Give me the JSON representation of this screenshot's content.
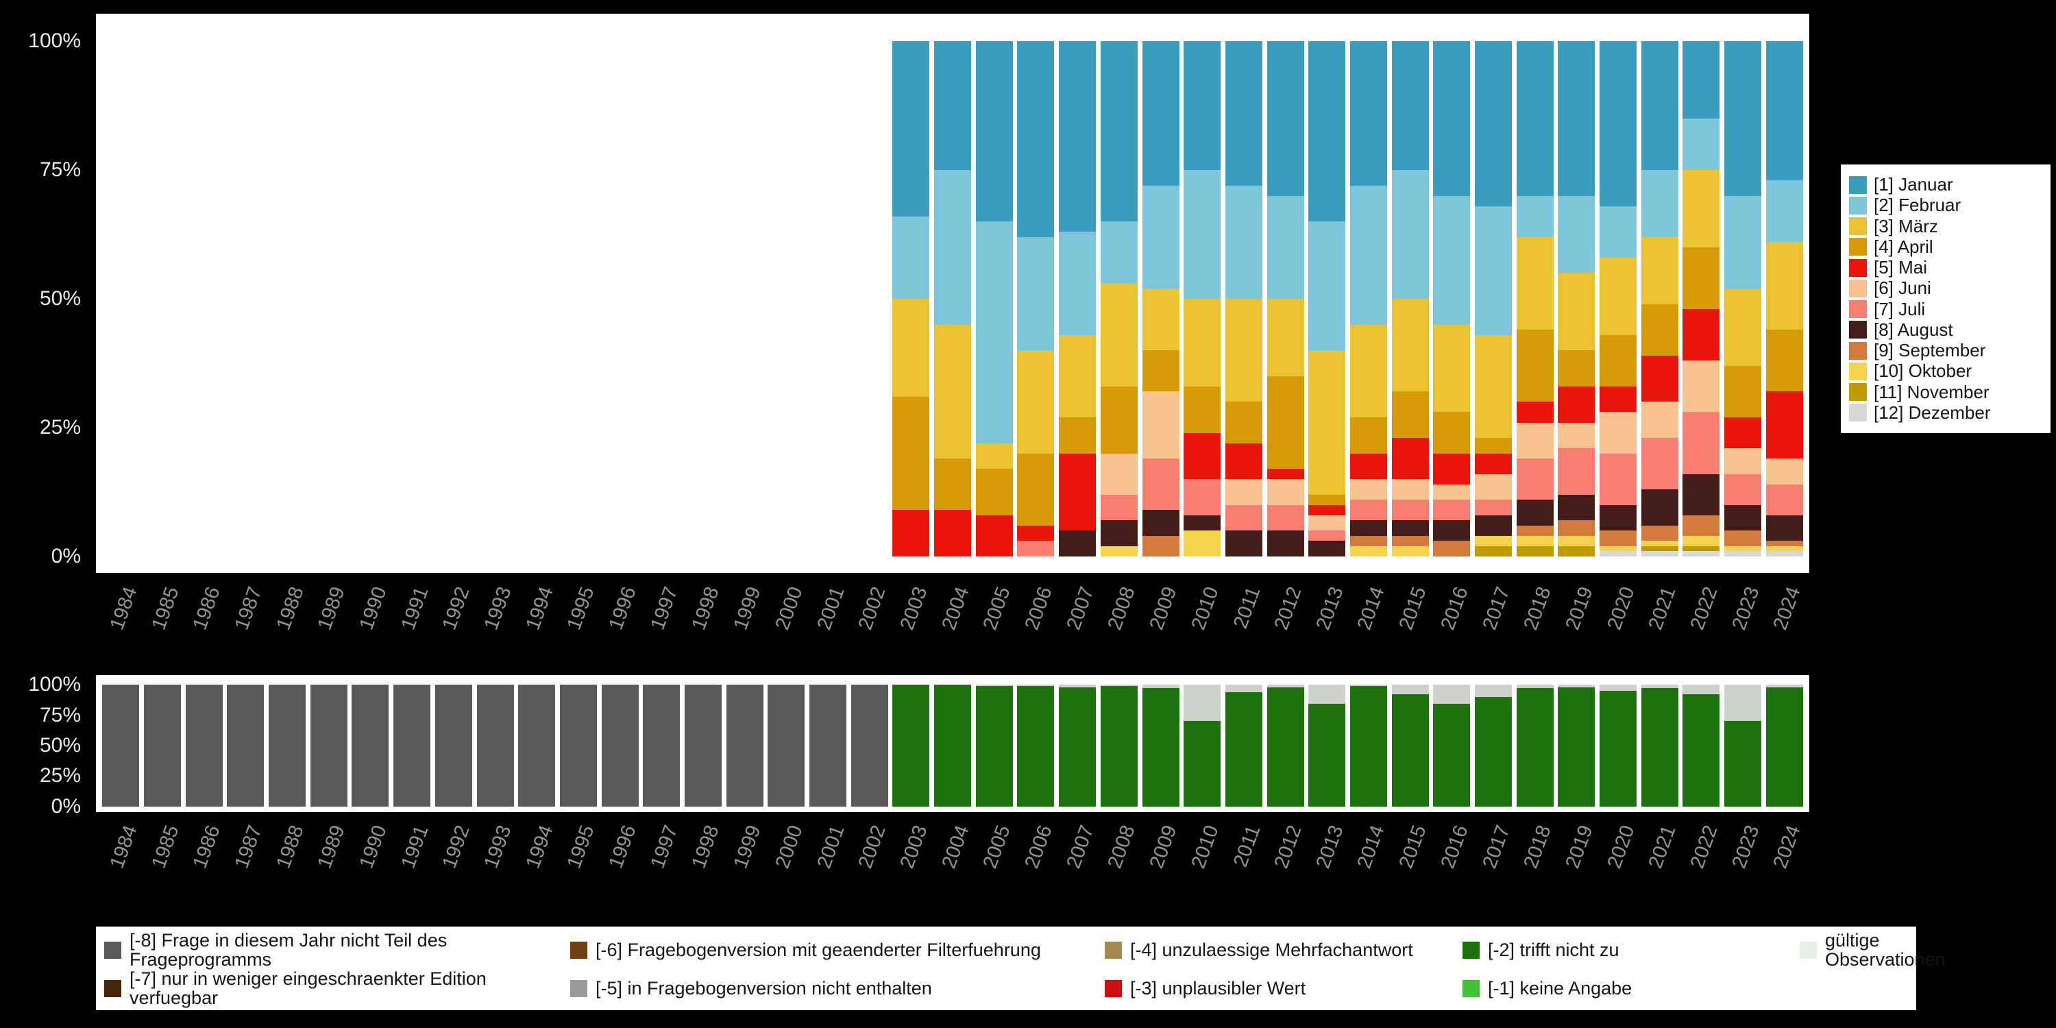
{
  "y_axis_ticks": [
    "100%",
    "75%",
    "50%",
    "25%",
    "0%"
  ],
  "chart_data": [
    {
      "type": "bar",
      "stacked": true,
      "title": "",
      "xlabel": "",
      "ylabel": "",
      "ylim": [
        0,
        100
      ],
      "grid": false,
      "legend_position": "right",
      "categories": [
        1984,
        1985,
        1986,
        1987,
        1988,
        1989,
        1990,
        1991,
        1992,
        1993,
        1994,
        1995,
        1996,
        1997,
        1998,
        1999,
        2000,
        2001,
        2002,
        2003,
        2004,
        2005,
        2006,
        2007,
        2008,
        2009,
        2010,
        2011,
        2012,
        2013,
        2014,
        2015,
        2016,
        2017,
        2018,
        2019,
        2020,
        2021,
        2022,
        2023,
        2024
      ],
      "series": [
        {
          "name": "[1] Januar",
          "color": "#3a9dbd",
          "values": [
            0,
            0,
            0,
            0,
            0,
            0,
            0,
            0,
            0,
            0,
            0,
            0,
            0,
            0,
            0,
            0,
            0,
            0,
            0,
            34,
            25,
            35,
            38,
            37,
            35,
            28,
            25,
            28,
            30,
            35,
            28,
            25,
            30,
            32,
            30,
            30,
            32,
            25,
            15,
            30,
            27
          ]
        },
        {
          "name": "[2] Februar",
          "color": "#7fc5da",
          "values": [
            0,
            0,
            0,
            0,
            0,
            0,
            0,
            0,
            0,
            0,
            0,
            0,
            0,
            0,
            0,
            0,
            0,
            0,
            0,
            16,
            30,
            43,
            22,
            20,
            12,
            20,
            25,
            22,
            20,
            25,
            27,
            25,
            25,
            25,
            8,
            15,
            10,
            13,
            10,
            18,
            12
          ]
        },
        {
          "name": "[3] März",
          "color": "#eac234",
          "values": [
            0,
            0,
            0,
            0,
            0,
            0,
            0,
            0,
            0,
            0,
            0,
            0,
            0,
            0,
            0,
            0,
            0,
            0,
            0,
            19,
            26,
            5,
            20,
            16,
            20,
            12,
            17,
            20,
            15,
            28,
            18,
            18,
            17,
            20,
            18,
            15,
            15,
            13,
            15,
            15,
            17
          ]
        },
        {
          "name": "[4] April",
          "color": "#d59a06",
          "values": [
            0,
            0,
            0,
            0,
            0,
            0,
            0,
            0,
            0,
            0,
            0,
            0,
            0,
            0,
            0,
            0,
            0,
            0,
            0,
            22,
            10,
            9,
            14,
            7,
            13,
            8,
            9,
            8,
            18,
            2,
            7,
            9,
            8,
            3,
            14,
            7,
            10,
            10,
            12,
            10,
            12
          ]
        },
        {
          "name": "[5] Mai",
          "color": "#e8150b",
          "values": [
            0,
            0,
            0,
            0,
            0,
            0,
            0,
            0,
            0,
            0,
            0,
            0,
            0,
            0,
            0,
            0,
            0,
            0,
            0,
            9,
            9,
            8,
            3,
            15,
            0,
            0,
            9,
            7,
            2,
            2,
            5,
            8,
            6,
            4,
            4,
            7,
            5,
            9,
            10,
            6,
            13
          ]
        },
        {
          "name": "[6] Juni",
          "color": "#f6c290",
          "values": [
            0,
            0,
            0,
            0,
            0,
            0,
            0,
            0,
            0,
            0,
            0,
            0,
            0,
            0,
            0,
            0,
            0,
            0,
            0,
            0,
            0,
            0,
            0,
            0,
            8,
            13,
            0,
            5,
            5,
            3,
            4,
            4,
            3,
            5,
            7,
            5,
            8,
            7,
            10,
            5,
            5
          ]
        },
        {
          "name": "[7] Juli",
          "color": "#f97e72",
          "values": [
            0,
            0,
            0,
            0,
            0,
            0,
            0,
            0,
            0,
            0,
            0,
            0,
            0,
            0,
            0,
            0,
            0,
            0,
            0,
            0,
            0,
            0,
            3,
            0,
            5,
            10,
            7,
            5,
            5,
            2,
            4,
            4,
            4,
            3,
            8,
            9,
            10,
            10,
            12,
            6,
            6
          ]
        },
        {
          "name": "[8] August",
          "color": "#441d1a",
          "values": [
            0,
            0,
            0,
            0,
            0,
            0,
            0,
            0,
            0,
            0,
            0,
            0,
            0,
            0,
            0,
            0,
            0,
            0,
            0,
            0,
            0,
            0,
            0,
            5,
            5,
            5,
            3,
            5,
            5,
            3,
            3,
            3,
            4,
            4,
            5,
            5,
            5,
            7,
            8,
            5,
            5
          ]
        },
        {
          "name": "[9] September",
          "color": "#d3793c",
          "values": [
            0,
            0,
            0,
            0,
            0,
            0,
            0,
            0,
            0,
            0,
            0,
            0,
            0,
            0,
            0,
            0,
            0,
            0,
            0,
            0,
            0,
            0,
            0,
            0,
            0,
            4,
            0,
            0,
            0,
            0,
            2,
            2,
            3,
            0,
            2,
            3,
            3,
            3,
            4,
            3,
            1
          ]
        },
        {
          "name": "[10] Oktober",
          "color": "#f3d44c",
          "values": [
            0,
            0,
            0,
            0,
            0,
            0,
            0,
            0,
            0,
            0,
            0,
            0,
            0,
            0,
            0,
            0,
            0,
            0,
            0,
            0,
            0,
            0,
            0,
            0,
            2,
            0,
            5,
            0,
            0,
            0,
            2,
            2,
            0,
            2,
            2,
            2,
            1,
            1,
            2,
            1,
            1
          ]
        },
        {
          "name": "[11] November",
          "color": "#bf9b00",
          "values": [
            0,
            0,
            0,
            0,
            0,
            0,
            0,
            0,
            0,
            0,
            0,
            0,
            0,
            0,
            0,
            0,
            0,
            0,
            0,
            0,
            0,
            0,
            0,
            0,
            0,
            0,
            0,
            0,
            0,
            0,
            0,
            0,
            0,
            2,
            2,
            2,
            0,
            1,
            1,
            0,
            0
          ]
        },
        {
          "name": "[12] Dezember",
          "color": "#d8d8d8",
          "values": [
            0,
            0,
            0,
            0,
            0,
            0,
            0,
            0,
            0,
            0,
            0,
            0,
            0,
            0,
            0,
            0,
            0,
            0,
            0,
            0,
            0,
            0,
            0,
            0,
            0,
            0,
            0,
            0,
            0,
            0,
            0,
            0,
            0,
            0,
            0,
            0,
            1,
            1,
            1,
            1,
            1
          ]
        }
      ]
    },
    {
      "type": "bar",
      "stacked": true,
      "title": "",
      "xlabel": "",
      "ylabel": "",
      "ylim": [
        0,
        100
      ],
      "grid": false,
      "legend_position": "bottom",
      "categories": [
        1984,
        1985,
        1986,
        1987,
        1988,
        1989,
        1990,
        1991,
        1992,
        1993,
        1994,
        1995,
        1996,
        1997,
        1998,
        1999,
        2000,
        2001,
        2002,
        2003,
        2004,
        2005,
        2006,
        2007,
        2008,
        2009,
        2010,
        2011,
        2012,
        2013,
        2014,
        2015,
        2016,
        2017,
        2018,
        2019,
        2020,
        2021,
        2022,
        2023,
        2024
      ],
      "series": [
        {
          "name": "gültige Observationen",
          "color": "#ccd2ca",
          "values": [
            0,
            0,
            0,
            0,
            0,
            0,
            0,
            0,
            0,
            0,
            0,
            0,
            0,
            0,
            0,
            0,
            0,
            0,
            0,
            0,
            0,
            1,
            1,
            2,
            1,
            3,
            30,
            6,
            2,
            16,
            1,
            8,
            16,
            10,
            3,
            2,
            5,
            3,
            8,
            30,
            2
          ]
        },
        {
          "name": "[-2] trifft nicht zu",
          "color": "#1d720d",
          "values": [
            0,
            0,
            0,
            0,
            0,
            0,
            0,
            0,
            0,
            0,
            0,
            0,
            0,
            0,
            0,
            0,
            0,
            0,
            0,
            100,
            100,
            99,
            99,
            98,
            99,
            97,
            70,
            94,
            98,
            84,
            99,
            92,
            84,
            90,
            97,
            98,
            95,
            97,
            92,
            70,
            98
          ]
        },
        {
          "name": "[-8] Frage in diesem Jahr nicht Teil des Frageprogramms",
          "color": "#595957",
          "values": [
            100,
            100,
            100,
            100,
            100,
            100,
            100,
            100,
            100,
            100,
            100,
            100,
            100,
            100,
            100,
            100,
            100,
            100,
            100,
            0,
            0,
            0,
            0,
            0,
            0,
            0,
            0,
            0,
            0,
            0,
            0,
            0,
            0,
            0,
            0,
            0,
            0,
            0,
            0,
            0,
            0
          ]
        }
      ]
    }
  ],
  "legend_missing": [
    {
      "label": "[-8] Frage in diesem Jahr nicht Teil des Frageprogramms",
      "color": "#595957"
    },
    {
      "label": "[-6] Fragebogenversion mit geaenderter Filterfuehrung",
      "color": "#6e3d12"
    },
    {
      "label": "[-4] unzulaessige Mehrfachantwort",
      "color": "#a58854"
    },
    {
      "label": "[-2] trifft nicht zu",
      "color": "#1d720d"
    },
    {
      "label": "gültige Observationen",
      "color": "#e7eee5"
    },
    {
      "label": "[-7] nur in weniger eingeschraenkter Edition verfuegbar",
      "color": "#46250e"
    },
    {
      "label": "[-5] in Fragebogenversion nicht enthalten",
      "color": "#999999"
    },
    {
      "label": "[-3] unplausibler Wert",
      "color": "#c91111"
    },
    {
      "label": "[-1] keine Angabe",
      "color": "#45c139"
    }
  ]
}
